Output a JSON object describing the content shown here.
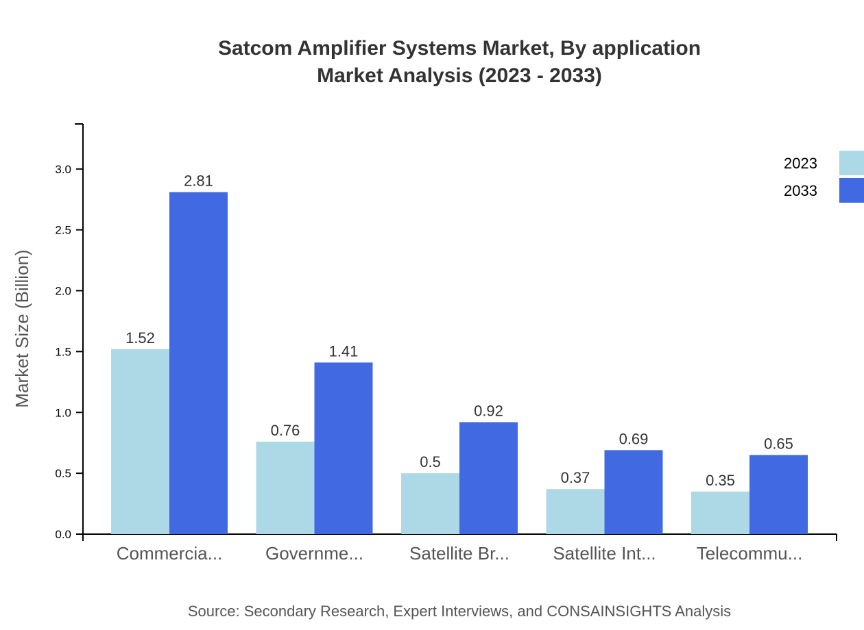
{
  "chart_data": {
    "type": "bar",
    "title": "Satcom Amplifier Systems Market, By application",
    "subtitle": "Market Analysis (2023 - 2033)",
    "xlabel": "",
    "ylabel": "Market Size (Billion)",
    "ylim": [
      0,
      3.37
    ],
    "yticks": [
      "0.0",
      "0.5",
      "1.0",
      "1.5",
      "2.0",
      "2.5",
      "3.0"
    ],
    "categories": [
      "Commercia...",
      "Governme...",
      "Satellite Br...",
      "Satellite Int...",
      "Telecommu..."
    ],
    "series": [
      {
        "name": "2023",
        "color": "#ADD8E6",
        "values": [
          1.52,
          0.76,
          0.5,
          0.37,
          0.35
        ],
        "labels": [
          "1.52",
          "0.76",
          "0.5",
          "0.37",
          "0.35"
        ]
      },
      {
        "name": "2033",
        "color": "#4169E1",
        "values": [
          2.81,
          1.41,
          0.92,
          0.69,
          0.65
        ],
        "labels": [
          "2.81",
          "1.41",
          "0.92",
          "0.69",
          "0.65"
        ]
      }
    ],
    "grid": false,
    "legend": "top-right",
    "source": "Source: Secondary Research, Expert Interviews, and CONSAINSIGHTS Analysis"
  }
}
